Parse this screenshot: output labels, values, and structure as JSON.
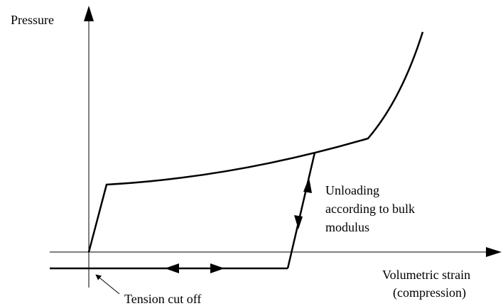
{
  "y_axis": {
    "label": "Pressure"
  },
  "x_axis": {
    "label_lines": [
      "Volumetric strain",
      "(compression)"
    ]
  },
  "annotations": {
    "unloading": [
      "Unloading",
      "according to bulk",
      "modulus"
    ],
    "tension": "Tension cut off"
  }
}
